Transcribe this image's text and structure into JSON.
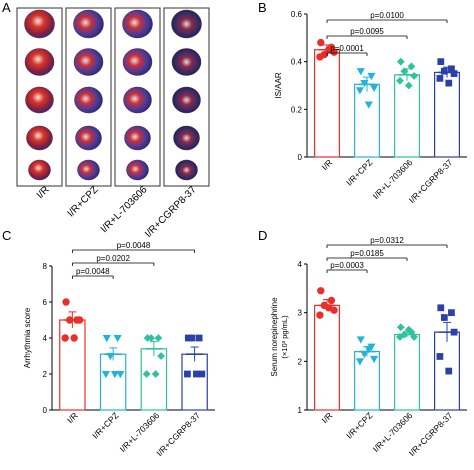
{
  "panel_labels": [
    "A",
    "B",
    "C",
    "D"
  ],
  "colors": {
    "ir": "#e8302a",
    "cpz": "#22b4d8",
    "l703606": "#2fc29e",
    "cgrp": "#2b40a8"
  },
  "panel_a": {
    "group_labels": [
      "I/R",
      "I/R+CPZ",
      "I/R+L-703606",
      "I/R+CGRP8-37"
    ],
    "slices_per_column": 5
  },
  "chart_data": [
    {
      "panel": "B",
      "type": "bar",
      "categories": [
        "I/R",
        "I/R+CPZ",
        "I/R+L-703606",
        "I/R+CGRP8-37"
      ],
      "ylabel": "IS/AAR",
      "ylim": [
        0,
        0.6
      ],
      "yticks": [
        "0",
        "0.2",
        "0.4",
        "0.6"
      ],
      "values": [
        0.45,
        0.305,
        0.345,
        0.355
      ],
      "errors": [
        0.02,
        0.03,
        0.025,
        0.022
      ],
      "points": [
        [
          0.48,
          0.46,
          0.43,
          0.44,
          0.42,
          0.45
        ],
        [
          0.36,
          0.34,
          0.31,
          0.29,
          0.28,
          0.22
        ],
        [
          0.4,
          0.38,
          0.36,
          0.34,
          0.32,
          0.3
        ],
        [
          0.4,
          0.37,
          0.36,
          0.35,
          0.33,
          0.31
        ]
      ],
      "markers": [
        "circle",
        "triangle-down",
        "diamond",
        "square"
      ],
      "comparisons": [
        {
          "from": 0,
          "to": 1,
          "label": "p=0.0001"
        },
        {
          "from": 0,
          "to": 2,
          "label": "p=0.0095"
        },
        {
          "from": 0,
          "to": 3,
          "label": "p=0.0100"
        }
      ]
    },
    {
      "panel": "C",
      "type": "bar",
      "categories": [
        "I/R",
        "I/R+CPZ",
        "I/R+L-703606",
        "I/R+CGRP8-37"
      ],
      "ylabel": "Arrhythmia score",
      "ylim": [
        0,
        8
      ],
      "yticks": [
        "0",
        "2",
        "4",
        "6",
        "8"
      ],
      "values": [
        5.0,
        3.1,
        3.4,
        3.1
      ],
      "errors": [
        0.45,
        0.35,
        0.4,
        0.4
      ],
      "points": [
        [
          6,
          5,
          5,
          5,
          4,
          4
        ],
        [
          4,
          4,
          3,
          2,
          2,
          2
        ],
        [
          4,
          4,
          4,
          3,
          2,
          2
        ],
        [
          4,
          4,
          4,
          2,
          2,
          2
        ]
      ],
      "markers": [
        "circle",
        "triangle-down",
        "diamond",
        "square"
      ],
      "comparisons": [
        {
          "from": 0,
          "to": 1,
          "label": "p=0.0048"
        },
        {
          "from": 0,
          "to": 2,
          "label": "p=0.0202"
        },
        {
          "from": 0,
          "to": 3,
          "label": "p=0.0048"
        }
      ]
    },
    {
      "panel": "D",
      "type": "bar",
      "categories": [
        "I/R",
        "I/R+CPZ",
        "I/R+L-703606",
        "I/R+CGRP8-37"
      ],
      "ylabel": "Serum norepinephrine",
      "ylabel2": "(×10³ pg/mL)",
      "ylim": [
        1,
        4
      ],
      "yticks": [
        "1",
        "2",
        "3",
        "4"
      ],
      "values": [
        3.15,
        2.2,
        2.55,
        2.6
      ],
      "errors": [
        0.12,
        0.1,
        0.06,
        0.2
      ],
      "points": [
        [
          3.45,
          3.25,
          3.15,
          3.05,
          2.95,
          3.1
        ],
        [
          2.45,
          2.3,
          2.15,
          2.05,
          2.0,
          2.25
        ],
        [
          2.7,
          2.6,
          2.55,
          2.5,
          2.5,
          2.65
        ],
        [
          3.1,
          3.0,
          2.9,
          2.6,
          2.1,
          1.8
        ]
      ],
      "markers": [
        "circle",
        "triangle-down",
        "diamond",
        "square"
      ],
      "comparisons": [
        {
          "from": 0,
          "to": 1,
          "label": "p=0.0003"
        },
        {
          "from": 0,
          "to": 2,
          "label": "p=0.0185"
        },
        {
          "from": 0,
          "to": 3,
          "label": "p=0.0312"
        }
      ]
    }
  ]
}
